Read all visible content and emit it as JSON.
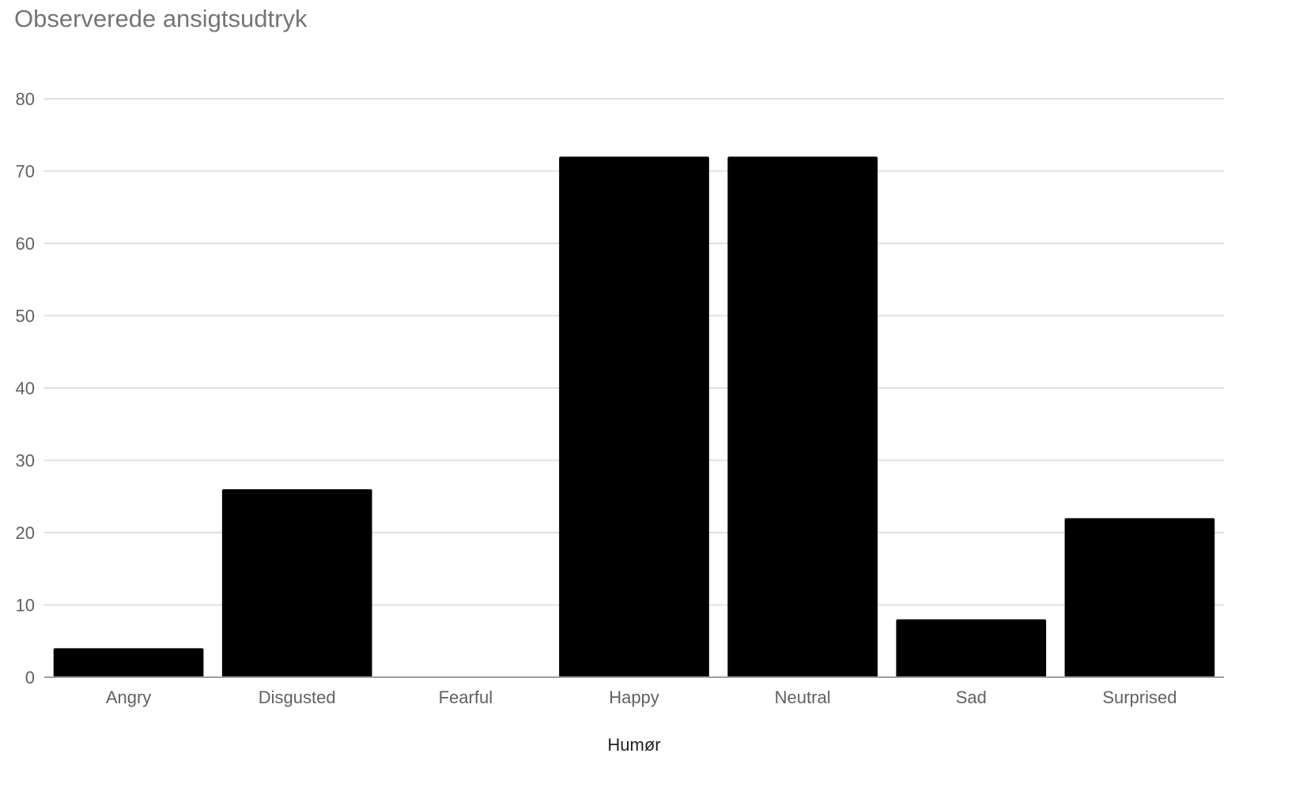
{
  "chart_data": {
    "type": "bar",
    "title": "Observerede ansigtsudtryk",
    "xlabel": "Humør",
    "ylabel": "",
    "categories": [
      "Angry",
      "Disgusted",
      "Fearful",
      "Happy",
      "Neutral",
      "Sad",
      "Surprised"
    ],
    "values": [
      4,
      26,
      0,
      72,
      72,
      8,
      22
    ],
    "ylim": [
      0,
      80
    ],
    "yticks": [
      0,
      10,
      20,
      30,
      40,
      50,
      60,
      70,
      80
    ],
    "grid": true,
    "legend": "none",
    "bar_color": "#000000",
    "grid_color": "#e0e0e0",
    "axis_color": "#9e9e9e"
  }
}
